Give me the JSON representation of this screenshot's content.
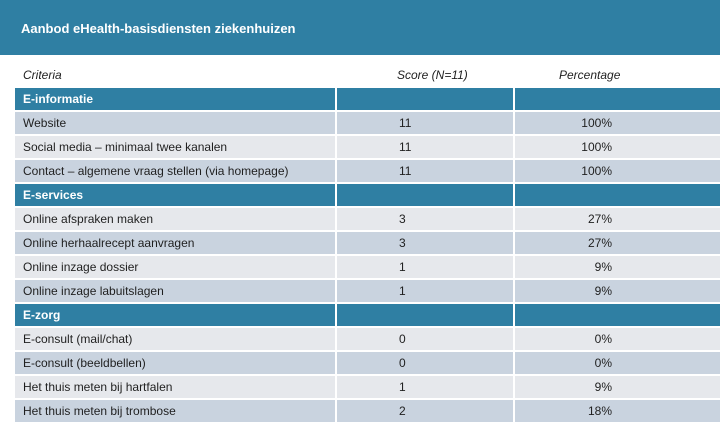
{
  "title": "Aanbod eHealth-basisdiensten ziekenhuizen",
  "headers": {
    "criteria": "Criteria",
    "score": "Score (N=11)",
    "percentage": "Percentage"
  },
  "rows": [
    {
      "type": "section",
      "criteria": "E-informatie",
      "score": "",
      "percentage": ""
    },
    {
      "type": "shade",
      "criteria": "Website",
      "score": "11",
      "percentage": "100%"
    },
    {
      "type": "light",
      "criteria": "Social media – minimaal twee kanalen",
      "score": "11",
      "percentage": "100%"
    },
    {
      "type": "shade",
      "criteria": "Contact – algemene vraag stellen (via homepage)",
      "score": "11",
      "percentage": "100%"
    },
    {
      "type": "section",
      "criteria": "E-services",
      "score": "",
      "percentage": ""
    },
    {
      "type": "light",
      "criteria": "Online afspraken maken",
      "score": "3",
      "percentage": "27%"
    },
    {
      "type": "shade",
      "criteria": "Online herhaalrecept aanvragen",
      "score": "3",
      "percentage": "27%"
    },
    {
      "type": "light",
      "criteria": "Online inzage dossier",
      "score": "1",
      "percentage": "9%"
    },
    {
      "type": "shade",
      "criteria": "Online inzage labuitslagen",
      "score": "1",
      "percentage": "9%"
    },
    {
      "type": "section",
      "criteria": "E-zorg",
      "score": "",
      "percentage": ""
    },
    {
      "type": "light",
      "criteria": "E-consult (mail/chat)",
      "score": "0",
      "percentage": "0%"
    },
    {
      "type": "shade",
      "criteria": "E-consult (beeldbellen)",
      "score": "0",
      "percentage": "0%"
    },
    {
      "type": "light",
      "criteria": "Het thuis meten bij hartfalen",
      "score": "1",
      "percentage": "9%"
    },
    {
      "type": "shade",
      "criteria": "Het thuis meten bij trombose",
      "score": "2",
      "percentage": "18%"
    }
  ],
  "colors": {
    "section": "#2f7fa3",
    "shade": "#c9d3df",
    "light": "#e6e8ec"
  }
}
